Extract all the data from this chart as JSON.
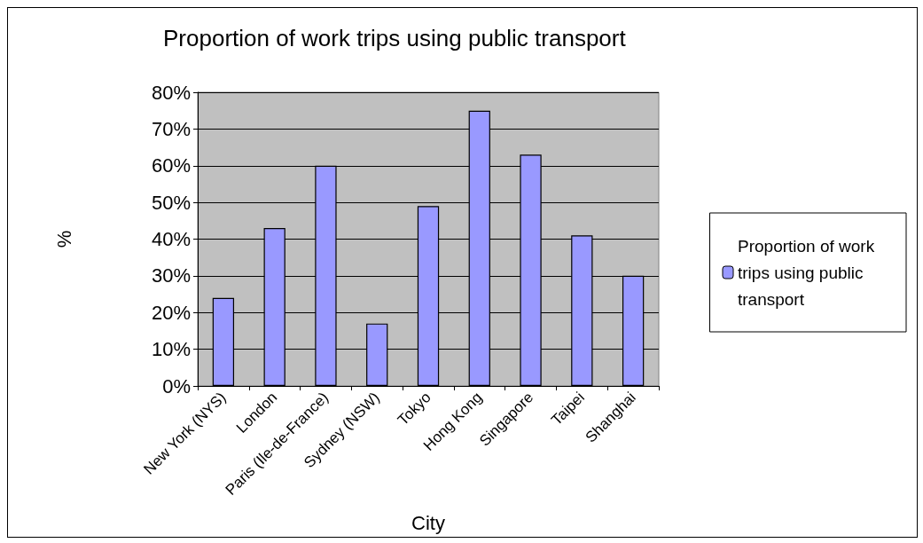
{
  "chart_data": {
    "type": "bar",
    "title": "Proportion of work trips using public transport",
    "xlabel": "City",
    "ylabel": "%",
    "categories": [
      "New York (NYS)",
      "London",
      "Paris (Ile-de-France)",
      "Sydney (NSW)",
      "Tokyo",
      "Hong Kong",
      "Singapore",
      "Taipei",
      "Shanghai"
    ],
    "series": [
      {
        "name": "Proportion of work trips using public transport",
        "color": "#9999ff",
        "values": [
          24,
          43,
          60,
          17,
          49,
          75,
          63,
          41,
          30
        ]
      }
    ],
    "ylim": [
      0,
      80
    ],
    "yticks": [
      {
        "value": 0,
        "label": "0%"
      },
      {
        "value": 10,
        "label": "10%"
      },
      {
        "value": 20,
        "label": "20%"
      },
      {
        "value": 30,
        "label": "30%"
      },
      {
        "value": 40,
        "label": "40%"
      },
      {
        "value": 50,
        "label": "50%"
      },
      {
        "value": 60,
        "label": "60%"
      },
      {
        "value": 70,
        "label": "70%"
      },
      {
        "value": 80,
        "label": "80%"
      }
    ],
    "grid": "y",
    "legend": "right"
  }
}
